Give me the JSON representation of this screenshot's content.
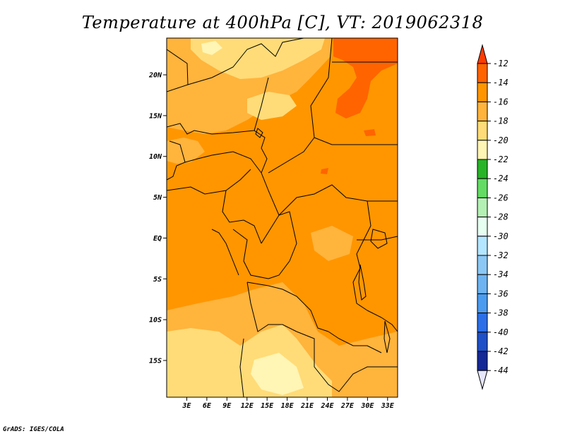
{
  "title": "Temperature at 400hPa [C], VT: 2019062318",
  "credit": "GrADS: IGES/COLA",
  "lat_ticks": [
    "20N",
    "15N",
    "10N",
    "5N",
    "EQ",
    "5S",
    "10S",
    "15S"
  ],
  "lat_values": [
    20,
    15,
    10,
    5,
    0,
    -5,
    -10,
    -15
  ],
  "lon_ticks": [
    "3E",
    "6E",
    "9E",
    "12E",
    "15E",
    "18E",
    "21E",
    "24E",
    "27E",
    "30E",
    "33E"
  ],
  "lon_values": [
    3,
    6,
    9,
    12,
    15,
    18,
    21,
    24,
    27,
    30,
    33
  ],
  "extent": {
    "lon": [
      0,
      34.5
    ],
    "lat": [
      -19.5,
      24.5
    ]
  },
  "colorbar": {
    "labels": [
      "-12",
      "-14",
      "-16",
      "-18",
      "-20",
      "-22",
      "-24",
      "-26",
      "-28",
      "-30",
      "-32",
      "-34",
      "-36",
      "-38",
      "-40",
      "-42",
      "-44"
    ],
    "colors": [
      "#ff3c00",
      "#ff6400",
      "#ff9600",
      "#ffb43c",
      "#ffdc78",
      "#fff5b4",
      "#28b428",
      "#64dc64",
      "#b4f0b4",
      "#e6fff0",
      "#b4e6ff",
      "#8cc8f5",
      "#6eb4f0",
      "#4b9bf0",
      "#2b6fe8",
      "#1e50c8",
      "#142896",
      "#0a0a6e",
      "#e6e6ff"
    ]
  },
  "fill_colors": {
    "c14": "#ff9600",
    "c16": "#ffb43c",
    "c18": "#ffdc78",
    "c12": "#ff6400",
    "c20": "#fff5b4"
  }
}
